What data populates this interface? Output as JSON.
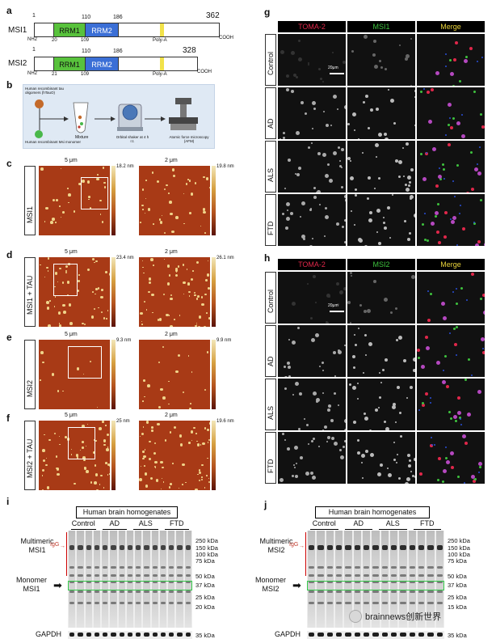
{
  "panels": {
    "a": "a",
    "b": "b",
    "c": "c",
    "d": "d",
    "e": "e",
    "f": "f",
    "g": "g",
    "h": "h",
    "i": "i",
    "j": "j"
  },
  "msi1": {
    "name": "MSI1",
    "start": "1",
    "end": "362",
    "nh2": "NH2",
    "cooh": "COOH",
    "rrm1": "RRM1",
    "rrm2": "RRM2",
    "polya": "Poly-A",
    "pos20": "20",
    "pos109": "109",
    "pos110": "110",
    "pos186": "186"
  },
  "msi2": {
    "name": "MSI2",
    "start": "1",
    "end": "328",
    "nh2": "NH2",
    "cooh": "COOH",
    "rrm1": "RRM1",
    "rrm2": "RRM2",
    "polya": "Poly-A",
    "pos21": "21",
    "pos109": "109",
    "pos110": "110",
    "pos186": "186"
  },
  "schematic": {
    "recombinant_tau": "Human recombinant tau oligomers (hTauO)",
    "recombinant_msi": "Human recombinant Msi monomer",
    "mixture": "Mixture",
    "shaker": "Orbital shaker at 4 h r.t.",
    "afm": "Atomic force microscopy (AFM)"
  },
  "afm": {
    "scale_5": "5 μm",
    "scale_2": "2 μm",
    "rows": [
      {
        "label": "MSI1",
        "h1": "18.2 nm",
        "h2": "19.8 nm"
      },
      {
        "label": "MSI1 + TAU",
        "h1": "23.4 nm",
        "h2": "26.1 nm"
      },
      {
        "label": "MSI2",
        "h1": "9.3 nm",
        "h2": "9.9 nm"
      },
      {
        "label": "MSI2 + TAU",
        "h1": "25 nm",
        "h2": "19.6 nm"
      }
    ]
  },
  "ihc_g": {
    "headers": [
      "TOMA-2",
      "MSI1",
      "Merge"
    ],
    "rows": [
      "Control",
      "AD",
      "ALS",
      "FTD"
    ],
    "scale": "20μm",
    "colors": {
      "toma": "#e0274a",
      "msi": "#3ec23e",
      "merge": "#e8d23a"
    }
  },
  "ihc_h": {
    "headers": [
      "TOMA-2",
      "MSI2",
      "Merge"
    ],
    "rows": [
      "Control",
      "AD",
      "ALS",
      "FTD"
    ],
    "scale": "20μm"
  },
  "wb_i": {
    "title": "Human brain homogenates",
    "groups": [
      "Control",
      "AD",
      "ALS",
      "FTD"
    ],
    "multimeric": "Multimeric MSI1",
    "igg": "IgG",
    "monomer": "Monomer MSI1",
    "gapdh": "GAPDH",
    "kda": [
      "250 kDa",
      "150 kDa",
      "100 kDa",
      "75 kDa",
      "50 kDa",
      "37 kDa",
      "25 kDa",
      "20 kDa",
      "35 kDa"
    ]
  },
  "wb_j": {
    "title": "Human brain homogenates",
    "groups": [
      "Control",
      "AD",
      "ALS",
      "FTD"
    ],
    "multimeric": "Multimeric MSI2",
    "igg": "IgG",
    "monomer": "Monomer MSI2",
    "gapdh": "GAPDH",
    "kda": [
      "250 kDa",
      "150 kDa",
      "100 kDa",
      "75 kDa",
      "50 kDa",
      "37 kDa",
      "25 kDa",
      "15 kDa",
      "35 kDa"
    ]
  },
  "watermark": "brainnews创新世界"
}
